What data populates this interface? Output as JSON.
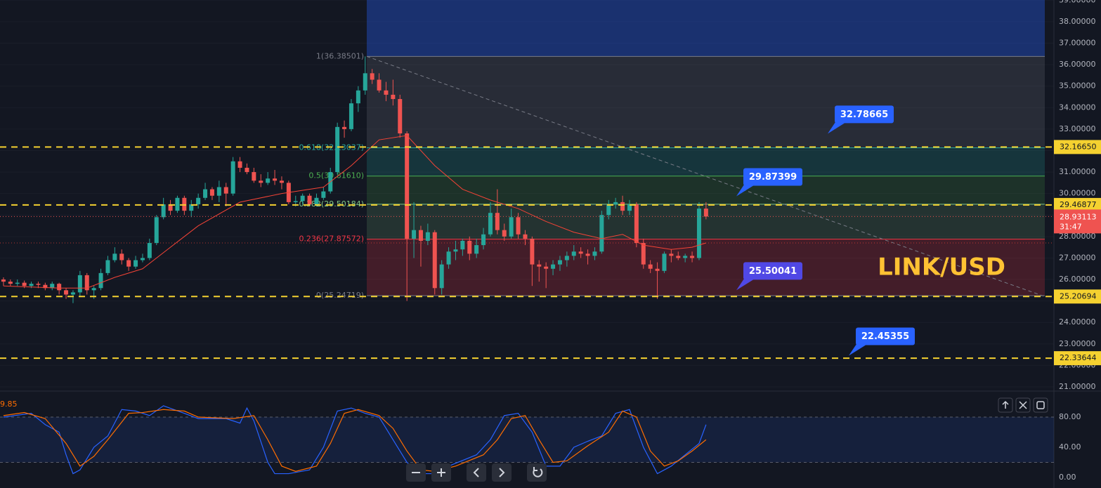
{
  "chart_data": {
    "type": "candlestick",
    "title": "LINK/USD",
    "up_color": "#26a69a",
    "down_color": "#ef5350",
    "candles": [
      [
        26.0,
        26.1,
        25.7,
        25.9
      ],
      [
        25.9,
        26.0,
        25.7,
        25.8
      ],
      [
        25.8,
        26.0,
        25.7,
        25.85
      ],
      [
        25.85,
        25.95,
        25.6,
        25.7
      ],
      [
        25.7,
        25.9,
        25.6,
        25.8
      ],
      [
        25.8,
        25.9,
        25.6,
        25.75
      ],
      [
        25.75,
        25.85,
        25.5,
        25.6
      ],
      [
        25.6,
        25.9,
        25.5,
        25.8
      ],
      [
        25.8,
        25.85,
        25.3,
        25.5
      ],
      [
        25.5,
        25.6,
        25.1,
        25.3
      ],
      [
        25.3,
        25.5,
        24.9,
        25.4
      ],
      [
        25.4,
        26.4,
        25.2,
        26.2
      ],
      [
        26.2,
        26.3,
        25.3,
        25.5
      ],
      [
        25.5,
        25.7,
        25.1,
        25.6
      ],
      [
        25.6,
        26.5,
        25.5,
        26.3
      ],
      [
        26.3,
        27.1,
        26.2,
        26.9
      ],
      [
        26.9,
        27.5,
        26.8,
        27.2
      ],
      [
        27.2,
        27.4,
        26.7,
        26.9
      ],
      [
        26.9,
        27.0,
        26.4,
        26.6
      ],
      [
        26.6,
        27.1,
        26.5,
        26.9
      ],
      [
        26.9,
        27.2,
        26.8,
        27.0
      ],
      [
        27.0,
        27.9,
        26.9,
        27.7
      ],
      [
        27.7,
        29.0,
        27.6,
        28.9
      ],
      [
        28.9,
        29.8,
        28.8,
        29.5
      ],
      [
        29.5,
        29.7,
        29.0,
        29.2
      ],
      [
        29.2,
        29.9,
        29.1,
        29.8
      ],
      [
        29.8,
        29.9,
        29.0,
        29.2
      ],
      [
        29.2,
        29.7,
        28.9,
        29.5
      ],
      [
        29.5,
        30.0,
        29.3,
        29.8
      ],
      [
        29.8,
        30.5,
        29.7,
        30.2
      ],
      [
        30.2,
        30.3,
        29.7,
        29.9
      ],
      [
        29.9,
        30.6,
        29.6,
        30.3
      ],
      [
        30.3,
        30.5,
        29.4,
        30.0
      ],
      [
        30.0,
        31.7,
        29.9,
        31.5
      ],
      [
        31.5,
        31.7,
        31.0,
        31.2
      ],
      [
        31.2,
        31.4,
        30.9,
        31.0
      ],
      [
        31.0,
        31.2,
        30.5,
        30.6
      ],
      [
        30.6,
        30.9,
        30.3,
        30.5
      ],
      [
        30.5,
        31.0,
        30.4,
        30.7
      ],
      [
        30.7,
        31.1,
        30.4,
        30.6
      ],
      [
        30.6,
        30.8,
        30.2,
        30.5
      ],
      [
        30.5,
        30.6,
        29.5,
        29.6
      ],
      [
        29.6,
        29.9,
        29.4,
        29.65
      ],
      [
        29.65,
        30.0,
        29.5,
        29.9
      ],
      [
        29.9,
        30.0,
        29.4,
        29.5
      ],
      [
        29.5,
        30.0,
        29.4,
        29.8
      ],
      [
        29.8,
        30.3,
        29.7,
        30.1
      ],
      [
        30.1,
        31.2,
        30.0,
        31.0
      ],
      [
        31.0,
        33.3,
        30.9,
        33.1
      ],
      [
        33.1,
        33.4,
        32.6,
        33.0
      ],
      [
        33.0,
        34.4,
        32.9,
        34.2
      ],
      [
        34.2,
        35.0,
        33.8,
        34.8
      ],
      [
        34.8,
        36.38501,
        34.6,
        35.6
      ],
      [
        35.6,
        35.8,
        35.1,
        35.3
      ],
      [
        35.3,
        35.6,
        34.7,
        34.8
      ],
      [
        34.8,
        35.2,
        34.3,
        34.6
      ],
      [
        34.6,
        35.3,
        34.1,
        34.4
      ],
      [
        34.4,
        34.6,
        32.6,
        32.8
      ],
      [
        32.8,
        32.9,
        25.0,
        27.9
      ],
      [
        27.9,
        29.6,
        27.0,
        28.3
      ],
      [
        28.3,
        28.5,
        26.6,
        27.8
      ],
      [
        27.8,
        28.6,
        27.6,
        28.2
      ],
      [
        28.2,
        28.3,
        25.3,
        25.6
      ],
      [
        25.6,
        26.9,
        25.3,
        26.7
      ],
      [
        26.7,
        27.5,
        26.5,
        27.3
      ],
      [
        27.3,
        27.8,
        26.9,
        27.4
      ],
      [
        27.4,
        27.9,
        27.1,
        27.8
      ],
      [
        27.8,
        28.0,
        26.9,
        27.2
      ],
      [
        27.2,
        27.9,
        27.0,
        27.6
      ],
      [
        27.6,
        28.4,
        27.4,
        28.1
      ],
      [
        28.1,
        29.6,
        28.0,
        29.1
      ],
      [
        29.1,
        30.2,
        28.1,
        28.3
      ],
      [
        28.3,
        28.6,
        27.8,
        28.0
      ],
      [
        28.0,
        29.3,
        27.9,
        28.9
      ],
      [
        28.9,
        29.1,
        27.9,
        28.1
      ],
      [
        28.1,
        28.3,
        27.6,
        27.9
      ],
      [
        27.9,
        28.0,
        25.7,
        26.7
      ],
      [
        26.7,
        26.9,
        25.9,
        26.6
      ],
      [
        26.6,
        26.8,
        25.6,
        26.5
      ],
      [
        26.5,
        26.9,
        26.2,
        26.7
      ],
      [
        26.7,
        27.1,
        26.4,
        26.9
      ],
      [
        26.9,
        27.3,
        26.6,
        27.1
      ],
      [
        27.1,
        27.6,
        26.9,
        27.3
      ],
      [
        27.3,
        27.5,
        27.0,
        27.2
      ],
      [
        27.2,
        27.4,
        26.7,
        27.1
      ],
      [
        27.1,
        27.5,
        26.9,
        27.3
      ],
      [
        27.3,
        29.2,
        27.2,
        29.0
      ],
      [
        29.0,
        29.7,
        28.8,
        29.5
      ],
      [
        29.5,
        29.8,
        29.3,
        29.6
      ],
      [
        29.6,
        29.9,
        29.0,
        29.2
      ],
      [
        29.2,
        29.7,
        29.0,
        29.5
      ],
      [
        29.5,
        29.6,
        27.5,
        27.7
      ],
      [
        27.7,
        27.9,
        26.5,
        26.7
      ],
      [
        26.7,
        26.9,
        26.3,
        26.5
      ],
      [
        26.5,
        26.8,
        25.1,
        26.4
      ],
      [
        26.4,
        27.3,
        26.3,
        27.2
      ],
      [
        27.2,
        27.4,
        26.8,
        27.1
      ],
      [
        27.1,
        27.3,
        26.9,
        27.0
      ],
      [
        27.0,
        27.2,
        26.8,
        27.1
      ],
      [
        27.1,
        27.3,
        26.8,
        27.0
      ],
      [
        27.0,
        29.6,
        26.9,
        29.3
      ],
      [
        29.3,
        29.6,
        28.8,
        28.93113
      ]
    ],
    "xlim": [
      -0.5,
      149.7
    ],
    "ylim": [
      20.87,
      39.01
    ],
    "yticks": [
      {
        "value": 21,
        "label": "21.00000"
      },
      {
        "value": 22,
        "label": "22.00000"
      },
      {
        "value": 23,
        "label": "23.00000"
      },
      {
        "value": 24,
        "label": "24.00000"
      },
      {
        "value": 25,
        "label": "25.00000"
      },
      {
        "value": 26,
        "label": "26.00000"
      },
      {
        "value": 27,
        "label": "27.00000"
      },
      {
        "value": 28,
        "label": "28.00000"
      },
      {
        "value": 29,
        "label": "29.00000"
      },
      {
        "value": 30,
        "label": "30.00000"
      },
      {
        "value": 31,
        "label": "31.00000"
      },
      {
        "value": 32,
        "label": "32.00000"
      },
      {
        "value": 33,
        "label": "33.00000"
      },
      {
        "value": 34,
        "label": "34.00000"
      },
      {
        "value": 35,
        "label": "35.00000"
      },
      {
        "value": 36,
        "label": "36.00000"
      },
      {
        "value": 37,
        "label": "37.00000"
      },
      {
        "value": 38,
        "label": "38.00000"
      },
      {
        "value": 39,
        "label": "39.00000"
      }
    ],
    "ma": {
      "color": "#f44336",
      "x": [
        0,
        8,
        12,
        16,
        20,
        24,
        28,
        34,
        40,
        46,
        50,
        54,
        58,
        62,
        66,
        70,
        74,
        78,
        82,
        86,
        89,
        92,
        96,
        99,
        101
      ],
      "values": [
        25.7,
        25.6,
        25.6,
        26.1,
        26.5,
        27.5,
        28.5,
        29.6,
        30.0,
        30.3,
        31.3,
        32.5,
        32.7,
        31.3,
        30.2,
        29.7,
        29.3,
        28.7,
        28.2,
        27.9,
        28.1,
        27.6,
        27.4,
        27.5,
        27.7
      ]
    },
    "levels": [
      {
        "value": 32.1665,
        "label": "32.16650"
      },
      {
        "value": 29.46877,
        "label": "29.46877"
      },
      {
        "value": 25.20694,
        "label": "25.20694"
      },
      {
        "value": 22.33644,
        "label": "22.33644"
      }
    ],
    "current": {
      "value": 28.93113,
      "label": "28.93113",
      "countdown": "31:47"
    },
    "fib": [
      {
        "value": 36.38501,
        "label": "1(36.38501)",
        "color": "#787b86"
      },
      {
        "value": 32.13037,
        "label": "0.618(32.13037)",
        "color": "#26a69a"
      },
      {
        "value": 30.8161,
        "label": "0.5(30.81610)",
        "color": "#4caf50"
      },
      {
        "value": 29.50184,
        "label": "0.382(29.50184)",
        "color": "#81c784"
      },
      {
        "value": 27.87572,
        "label": "0.236(27.87572)",
        "color": "#f23645"
      },
      {
        "value": 25.24719,
        "label": "0(25.24719)",
        "color": "#787b86"
      }
    ],
    "callouts": [
      {
        "value": 32.78665,
        "label": "32.78665",
        "color": "#2962ff"
      },
      {
        "value": 29.87399,
        "label": "29.87399",
        "color": "#2962ff"
      },
      {
        "value": 25.50041,
        "label": "25.50041",
        "color": "#5048e5"
      },
      {
        "value": 22.45355,
        "label": "22.45355",
        "color": "#2962ff"
      }
    ],
    "oscillator": {
      "ylim": [
        -14,
        113.5
      ],
      "yticks": [
        {
          "value": 0,
          "label": "0.00"
        },
        {
          "value": 40,
          "label": "40.00"
        },
        {
          "value": 80,
          "label": "80.00"
        }
      ],
      "bands": [
        20,
        80
      ],
      "last_label": "9.85",
      "k": {
        "color": "#2962ff",
        "x": [
          0,
          4,
          6,
          8,
          9,
          10,
          11,
          13,
          15,
          17,
          19,
          21,
          23,
          26,
          28,
          32,
          34,
          35,
          36,
          38,
          39,
          41,
          44,
          46,
          48,
          50,
          52,
          54,
          56,
          58,
          60,
          62,
          64,
          68,
          70,
          72,
          74,
          76,
          78,
          80,
          82,
          84,
          86,
          88,
          90,
          92,
          94,
          96,
          98,
          100,
          101
        ],
        "values": [
          80,
          85,
          70,
          60,
          30,
          5,
          10,
          40,
          55,
          90,
          88,
          82,
          95,
          85,
          78,
          78,
          72,
          92,
          75,
          20,
          5,
          5,
          10,
          40,
          88,
          92,
          85,
          80,
          50,
          20,
          5,
          5,
          15,
          30,
          50,
          82,
          85,
          60,
          15,
          15,
          40,
          48,
          55,
          85,
          90,
          40,
          5,
          15,
          30,
          45,
          70
        ]
      },
      "d": {
        "color": "#ff6d00",
        "x": [
          0,
          3,
          6,
          9,
          11,
          13,
          15,
          18,
          20,
          23,
          26,
          28,
          33,
          36,
          38,
          40,
          42,
          45,
          47,
          49,
          51,
          54,
          56,
          58,
          60,
          62,
          65,
          69,
          71,
          73,
          75,
          77,
          79,
          81,
          84,
          87,
          89,
          91,
          93,
          95,
          97,
          99,
          101
        ],
        "values": [
          82,
          86,
          78,
          45,
          15,
          28,
          50,
          85,
          86,
          90,
          88,
          80,
          78,
          82,
          50,
          15,
          8,
          15,
          45,
          85,
          90,
          82,
          65,
          35,
          10,
          8,
          15,
          30,
          50,
          78,
          82,
          50,
          20,
          22,
          42,
          60,
          88,
          80,
          35,
          15,
          22,
          35,
          50
        ]
      }
    }
  }
}
